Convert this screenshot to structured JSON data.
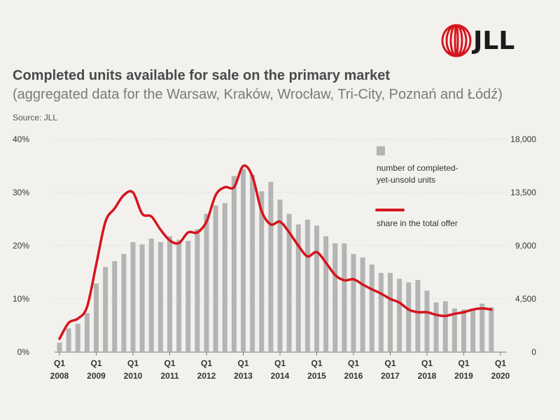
{
  "header": {
    "logo_text": "JLL",
    "title": "Completed units available for sale on the primary market",
    "subtitle": "(aggregated data for the Warsaw, Kraków, Wrocław, Tri-City, Poznań and Łódź)",
    "source": "Source: JLL"
  },
  "colors": {
    "bar": "#b4b4b4",
    "line": "#d6141c",
    "background": "#f3f1ee"
  },
  "chart_data": {
    "type": "bar",
    "x_tick_labels": [
      {
        "q": "Q1",
        "year": "2008"
      },
      {
        "q": "Q1",
        "year": "2009"
      },
      {
        "q": "Q1",
        "year": "2010"
      },
      {
        "q": "Q1",
        "year": "2011"
      },
      {
        "q": "Q1",
        "year": "2012"
      },
      {
        "q": "Q1",
        "year": "2013"
      },
      {
        "q": "Q1",
        "year": "2014"
      },
      {
        "q": "Q1",
        "year": "2015"
      },
      {
        "q": "Q1",
        "year": "2016"
      },
      {
        "q": "Q1",
        "year": "2017"
      },
      {
        "q": "Q1",
        "year": "2018"
      },
      {
        "q": "Q1",
        "year": "2019"
      },
      {
        "q": "Q1",
        "year": "2020"
      }
    ],
    "y_left": {
      "ticks": [
        "0%",
        "10%",
        "20%",
        "30%",
        "40%"
      ],
      "range": [
        0,
        40
      ]
    },
    "y_right": {
      "ticks": [
        "0",
        "4,500",
        "9,000",
        "13,500",
        "18,000"
      ],
      "range": [
        0,
        18000
      ]
    },
    "series": [
      {
        "name": "number of completed-yet-unsold units",
        "kind": "bar",
        "axis": "right",
        "values": [
          800,
          2000,
          2400,
          3300,
          5800,
          7200,
          7700,
          8300,
          9300,
          9100,
          9600,
          9300,
          9800,
          9500,
          9400,
          10400,
          11700,
          12400,
          12600,
          14900,
          15500,
          15000,
          13600,
          14400,
          12900,
          11700,
          10800,
          11200,
          10700,
          9800,
          9200,
          9200,
          8300,
          8000,
          7400,
          6700,
          6700,
          6200,
          5900,
          6100,
          5200,
          4200,
          4300,
          3700,
          3600,
          3600,
          4100,
          3800
        ]
      },
      {
        "name": "share in the total offer",
        "kind": "line",
        "axis": "left",
        "values": [
          2.5,
          5.5,
          6.3,
          8.5,
          16.5,
          24.5,
          27.0,
          29.5,
          30.0,
          26.0,
          25.5,
          23.0,
          21.0,
          20.5,
          22.5,
          22.5,
          24.5,
          29.5,
          31.0,
          31.0,
          35.0,
          33.0,
          26.5,
          24.0,
          24.5,
          22.5,
          20.0,
          18.0,
          18.8,
          16.8,
          14.5,
          13.5,
          13.7,
          12.7,
          11.8,
          11.0,
          10.0,
          9.3,
          8.0,
          7.5,
          7.5,
          7.0,
          6.8,
          7.2,
          7.5,
          8.0,
          8.2,
          8.0
        ]
      }
    ],
    "legend": {
      "position": "right",
      "bar_label_line1": "number of completed-",
      "bar_label_line2": "yet-unsold units",
      "line_label": "share in the total offer"
    },
    "grid": true
  }
}
